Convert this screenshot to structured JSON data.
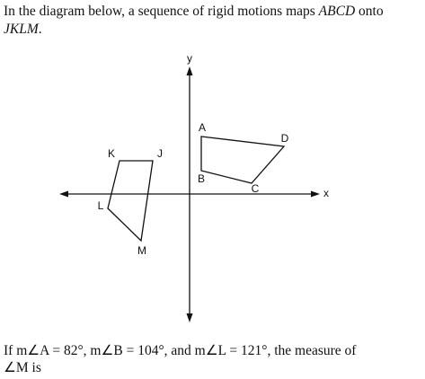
{
  "intro": {
    "text1": "In the diagram below, a sequence of rigid motions maps ",
    "figure1": "ABCD",
    "text2": " onto",
    "figure2": "JKLM",
    "text3": "."
  },
  "diagram": {
    "x_axis_label": "x",
    "y_axis_label": "y",
    "points": [
      "A",
      "B",
      "C",
      "D",
      "J",
      "K",
      "L",
      "M"
    ]
  },
  "question": {
    "line1": "If m∠A = 82°, m∠B = 104°, and m∠L = 121°, the measure of",
    "line2": "∠M is"
  }
}
